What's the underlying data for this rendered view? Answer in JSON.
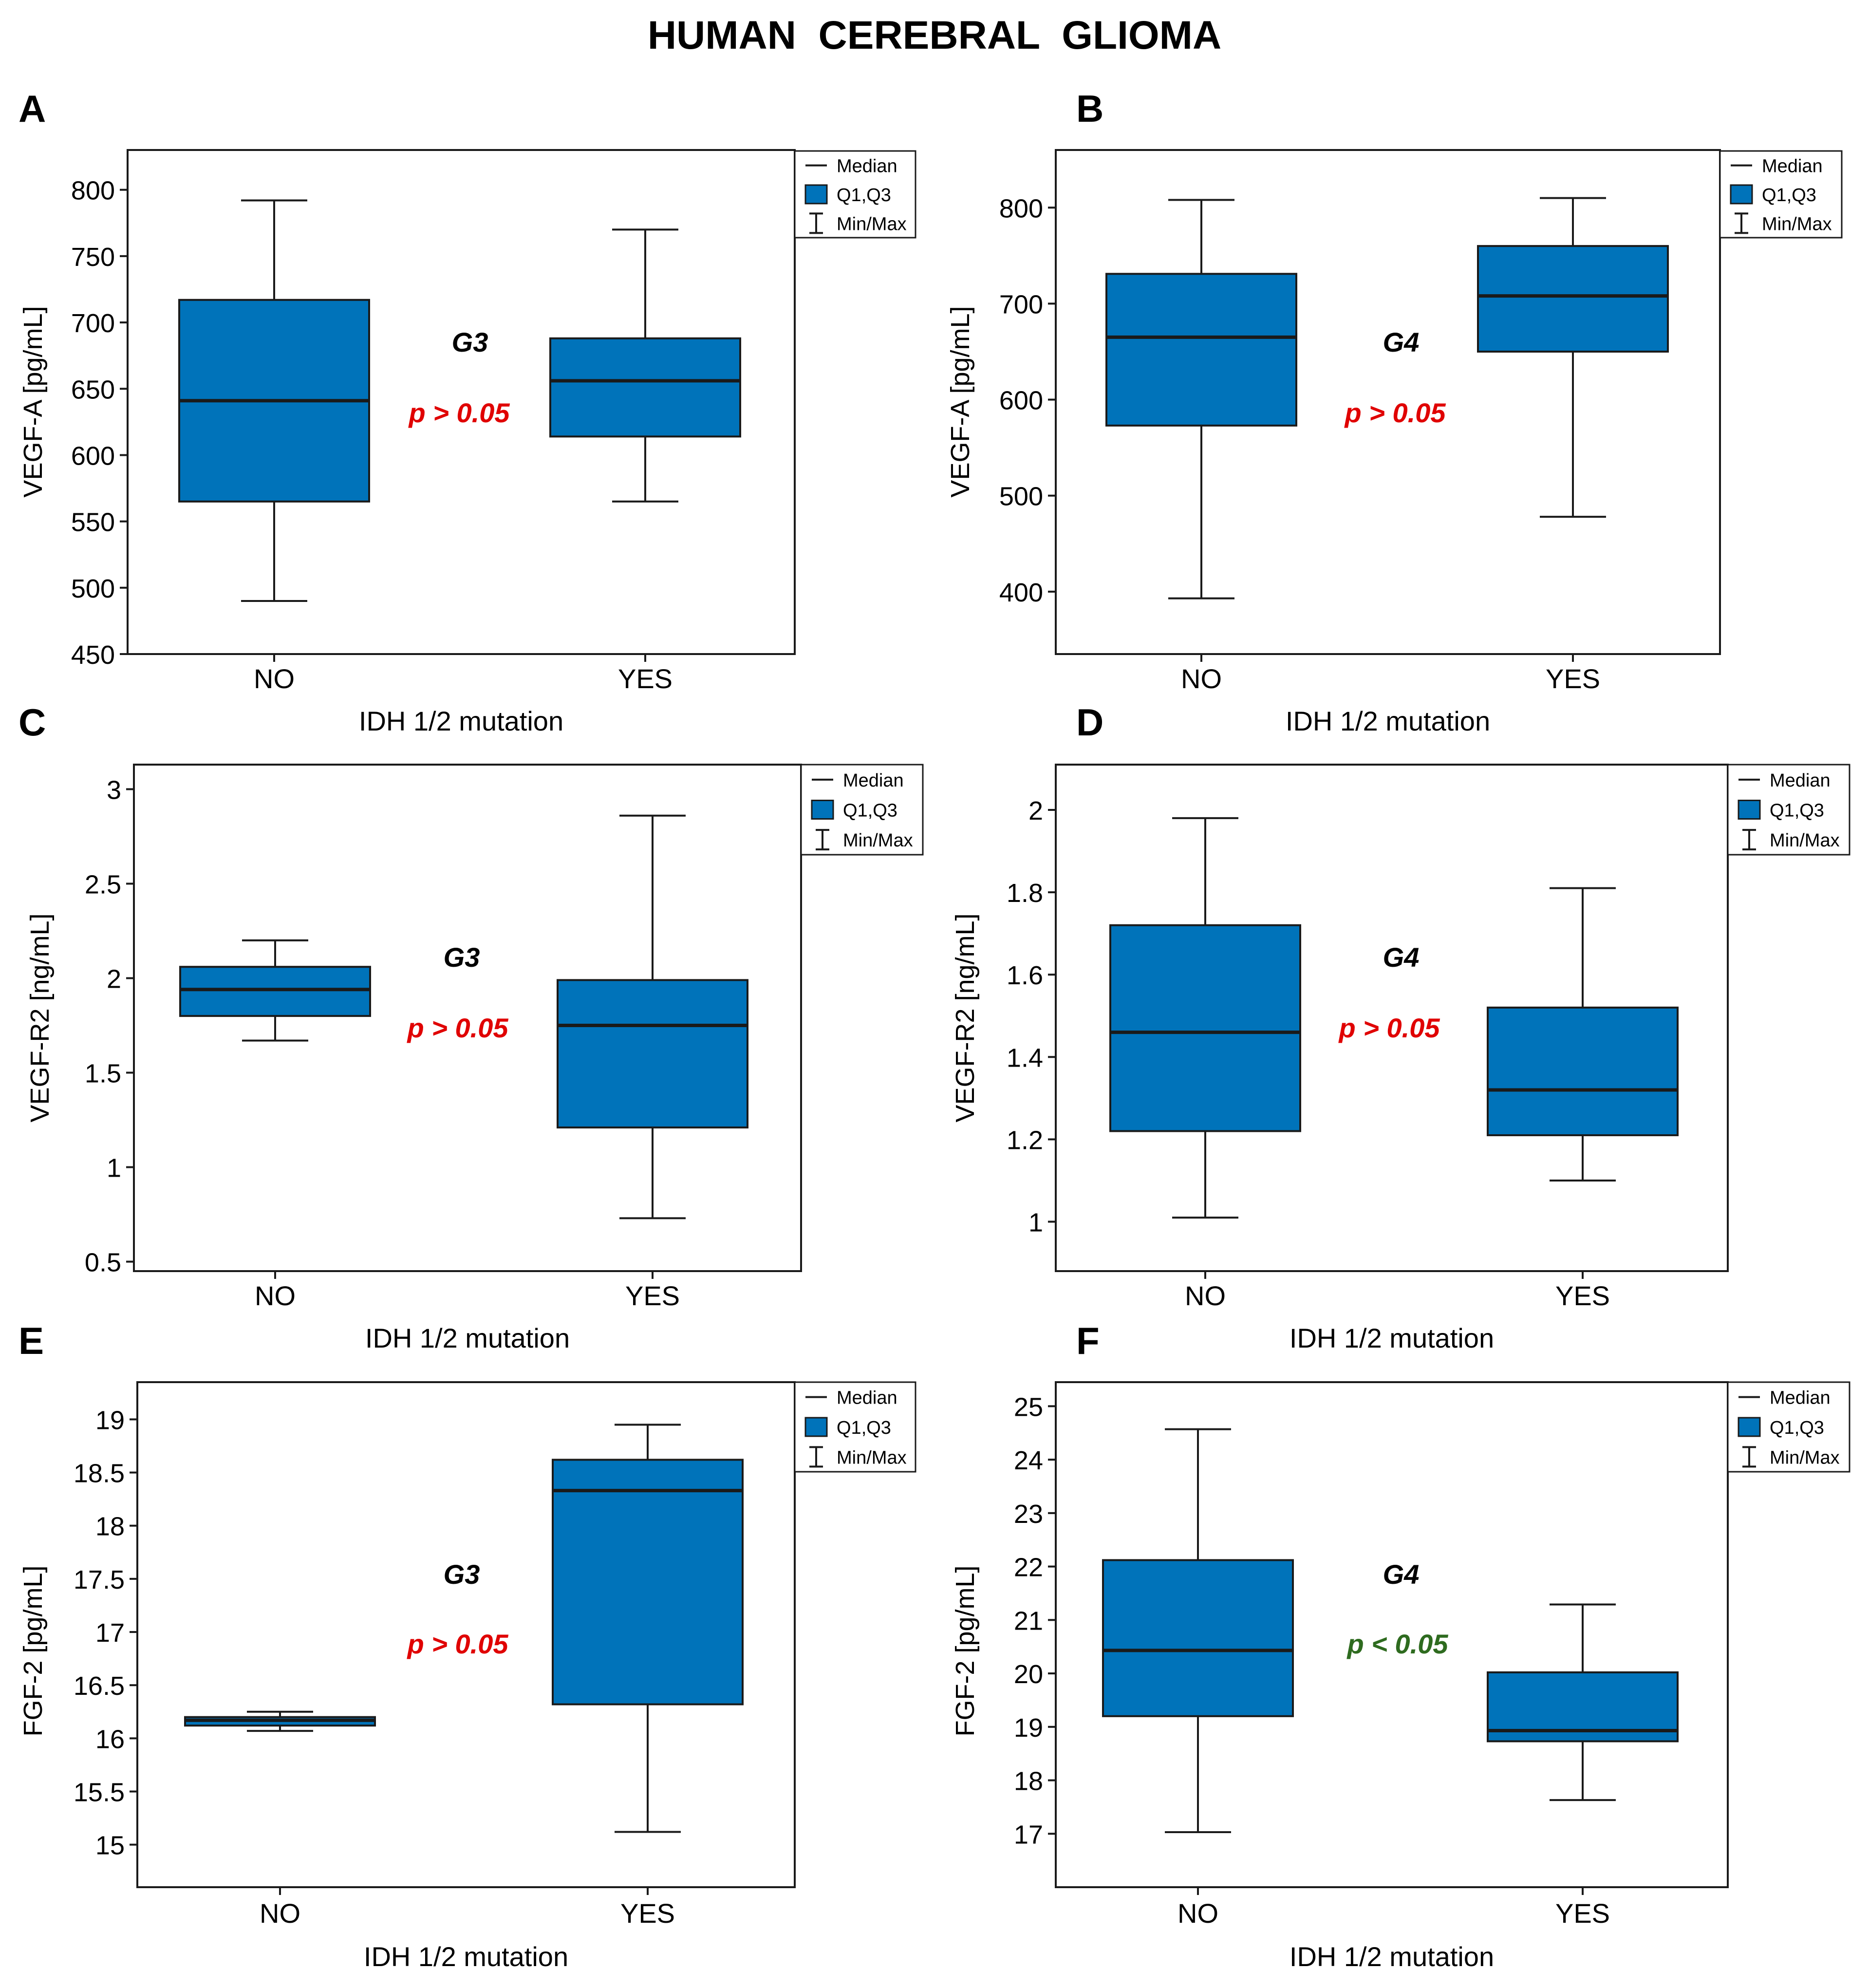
{
  "figure_title": "HUMAN  CEREBRAL  GLIOMA",
  "legend": {
    "median": "Median",
    "quartiles": "Q1,Q3",
    "minmax": "Min/Max"
  },
  "colors": {
    "box_fill": "#0073BA",
    "stroke": "#1A1A1A",
    "p_nonsig": "#E00000",
    "p_sig": "#2E6B1F"
  },
  "chart_data": [
    {
      "type": "box",
      "panel_label": "A",
      "ylabel": "VEGF-A [pg/mL]",
      "xlabel": "IDH 1/2 mutation",
      "categories": [
        "NO",
        "YES"
      ],
      "ylim": [
        450,
        830
      ],
      "yticks": [
        450,
        500,
        550,
        600,
        650,
        700,
        750,
        800
      ],
      "boxes": [
        {
          "min": 490,
          "q1": 565,
          "median": 641,
          "q3": 717,
          "max": 792
        },
        {
          "min": 565,
          "q1": 614,
          "median": 656,
          "q3": 688,
          "max": 770
        }
      ],
      "grade": "G3",
      "p_text": "p > 0.05",
      "significant": false
    },
    {
      "type": "box",
      "panel_label": "B",
      "ylabel": "VEGF-A [pg/mL]",
      "xlabel": "IDH 1/2 mutation",
      "categories": [
        "NO",
        "YES"
      ],
      "ylim": [
        335,
        860
      ],
      "yticks": [
        400,
        500,
        600,
        700,
        800
      ],
      "boxes": [
        {
          "min": 393,
          "q1": 573,
          "median": 665,
          "q3": 731,
          "max": 808
        },
        {
          "min": 478,
          "q1": 650,
          "median": 708,
          "q3": 760,
          "max": 810
        }
      ],
      "grade": "G4",
      "p_text": "p > 0.05",
      "significant": false
    },
    {
      "type": "box",
      "panel_label": "C",
      "ylabel": "VEGF-R2 [ng/mL]",
      "xlabel": "IDH 1/2 mutation",
      "categories": [
        "NO",
        "YES"
      ],
      "ylim": [
        0.45,
        3.13
      ],
      "yticks": [
        0.5,
        1,
        1.5,
        2,
        2.5,
        3
      ],
      "ytick_labels": [
        "0.5",
        "1",
        "1.5",
        "2",
        "2.5",
        "3"
      ],
      "boxes": [
        {
          "min": 1.67,
          "q1": 1.8,
          "median": 1.94,
          "q3": 2.06,
          "max": 2.2
        },
        {
          "min": 0.73,
          "q1": 1.21,
          "median": 1.75,
          "q3": 1.99,
          "max": 2.86
        }
      ],
      "grade": "G3",
      "p_text": "p > 0.05",
      "significant": false
    },
    {
      "type": "box",
      "panel_label": "D",
      "ylabel": "VEGF-R2 [ng/mL]",
      "xlabel": "IDH 1/2 mutation",
      "categories": [
        "NO",
        "YES"
      ],
      "ylim": [
        0.88,
        2.11
      ],
      "yticks": [
        1,
        1.2,
        1.4,
        1.6,
        1.8,
        2
      ],
      "ytick_labels": [
        "1",
        "1.2",
        "1.4",
        "1.6",
        "1.8",
        "2"
      ],
      "boxes": [
        {
          "min": 1.01,
          "q1": 1.22,
          "median": 1.46,
          "q3": 1.72,
          "max": 1.98
        },
        {
          "min": 1.1,
          "q1": 1.21,
          "median": 1.32,
          "q3": 1.52,
          "max": 1.81
        }
      ],
      "grade": "G4",
      "p_text": "p > 0.05",
      "significant": false
    },
    {
      "type": "box",
      "panel_label": "E",
      "ylabel": "FGF-2 [pg/mL]",
      "xlabel": "IDH 1/2 mutation",
      "categories": [
        "NO",
        "YES"
      ],
      "ylim": [
        14.6,
        19.35
      ],
      "yticks": [
        15,
        15.5,
        16,
        16.5,
        17,
        17.5,
        18,
        18.5,
        19
      ],
      "ytick_labels": [
        "15",
        "15.5",
        "16",
        "16.5",
        "17",
        "17.5",
        "18",
        "18.5",
        "19"
      ],
      "boxes": [
        {
          "min": 16.07,
          "q1": 16.12,
          "median": 16.17,
          "q3": 16.2,
          "max": 16.25
        },
        {
          "min": 15.12,
          "q1": 16.32,
          "median": 18.33,
          "q3": 18.62,
          "max": 18.95
        }
      ],
      "grade": "G3",
      "p_text": "p > 0.05",
      "significant": false
    },
    {
      "type": "box",
      "panel_label": "F",
      "ylabel": "FGF-2 [pg/mL]",
      "xlabel": "IDH 1/2 mutation",
      "categories": [
        "NO",
        "YES"
      ],
      "ylim": [
        16.0,
        25.45
      ],
      "yticks": [
        17,
        18,
        19,
        20,
        21,
        22,
        23,
        24,
        25
      ],
      "boxes": [
        {
          "min": 17.03,
          "q1": 19.2,
          "median": 20.43,
          "q3": 22.12,
          "max": 24.57
        },
        {
          "min": 17.63,
          "q1": 18.73,
          "median": 18.93,
          "q3": 20.02,
          "max": 21.29
        }
      ],
      "grade": "G4",
      "p_text": "p < 0.05",
      "significant": true
    }
  ]
}
